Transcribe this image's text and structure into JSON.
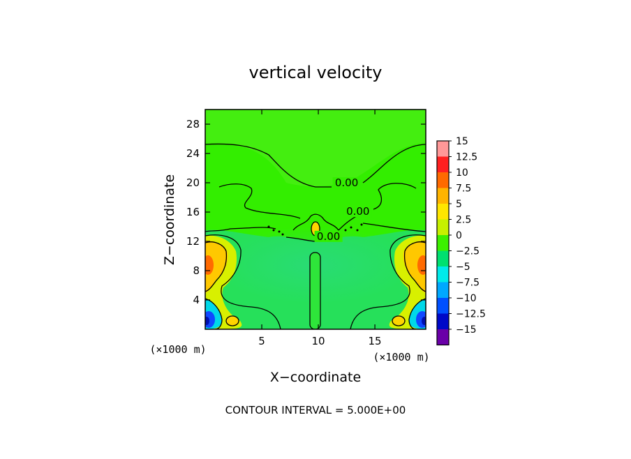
{
  "chart_data": {
    "type": "heatmap",
    "title": "vertical velocity",
    "xlabel": "X−coordinate",
    "ylabel": "Z−coordinate",
    "x_unit_left": "(×1000 m)",
    "x_unit_right": "(×1000 m)",
    "xlim": [
      0,
      19.5
    ],
    "ylim": [
      0,
      30
    ],
    "x_ticks": [
      5,
      10,
      15
    ],
    "y_ticks": [
      4,
      8,
      12,
      16,
      20,
      24,
      28
    ],
    "contour_labels": [
      {
        "text": "0.00",
        "x": 12.5,
        "z": 19.6
      },
      {
        "text": "0.00",
        "x": 13.5,
        "z": 15.7
      },
      {
        "text": "0.00",
        "x": 10.9,
        "z": 12.3
      }
    ],
    "footer": "CONTOUR INTERVAL = 5.000E+00",
    "colorbar": {
      "labels": [
        "15",
        "12.5",
        "10",
        "7.5",
        "5",
        "2.5",
        "0",
        "−2.5",
        "−5",
        "−7.5",
        "−10",
        "−12.5",
        "−15"
      ],
      "colors": [
        "#ff9898",
        "#ff2020",
        "#ff6a00",
        "#ffb400",
        "#ffe600",
        "#c6f000",
        "#3cf000",
        "#00e070",
        "#00eaea",
        "#00a8ff",
        "#0050ff",
        "#0008c8",
        "#6a00a8"
      ],
      "range": [
        -15,
        15
      ]
    }
  }
}
